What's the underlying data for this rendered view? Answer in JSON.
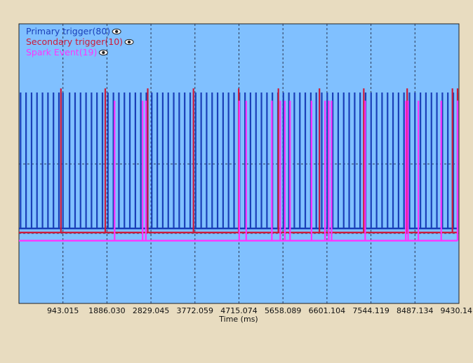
{
  "chart_data": {
    "type": "line",
    "xlabel": "Time (ms)",
    "ylabel": "",
    "xlim": [
      0,
      9430.14
    ],
    "x_ticks": [
      943.015,
      1886.03,
      2829.045,
      3772.059,
      4715.074,
      5658.089,
      6601.104,
      7544.119,
      8487.134,
      9430.14
    ],
    "x_tick_labels": [
      "943.015",
      "1886.030",
      "2829.045",
      "3772.059",
      "4715.074",
      "5658.089",
      "6601.104",
      "7544.119",
      "8487.134",
      "9430.14"
    ],
    "grid": true,
    "legend_position": "top-left",
    "background": "#80c0ff",
    "series": [
      {
        "name": "Primary trigger(80)",
        "color": "#1a3fb8",
        "signal": "pulse",
        "low": 0.0,
        "high": 1.0,
        "x": [
          35,
          152,
          270,
          387,
          505,
          622,
          740,
          857,
          943,
          1085,
          1203,
          1320,
          1438,
          1555,
          1672,
          1790,
          1907,
          2025,
          2142,
          2260,
          2377,
          2495,
          2612,
          2730,
          2847,
          2965,
          3082,
          3200,
          3317,
          3435,
          3552,
          3670,
          3787,
          3905,
          4022,
          4140,
          4257,
          4375,
          4492,
          4610,
          4727,
          4845,
          4962,
          5080,
          5197,
          5315,
          5432,
          5550,
          5667,
          5785,
          5902,
          6020,
          6137,
          6255,
          6372,
          6490,
          6607,
          6725,
          6842,
          6960,
          7077,
          7195,
          7312,
          7430,
          7547,
          7665,
          7782,
          7900,
          8017,
          8135,
          8252,
          8370,
          8487,
          8605,
          8722,
          8840,
          8957,
          9075,
          9192,
          9310
        ]
      },
      {
        "name": "Secondary trigger(10)",
        "color": "#cc1a3a",
        "signal": "pulse",
        "low": -0.03,
        "high": 1.03,
        "x": [
          900,
          1850,
          2760,
          3740,
          4710,
          5560,
          6440,
          7390,
          8320,
          9290
        ]
      },
      {
        "name": "Spark Event(19)",
        "color": "#ff33ff",
        "signal": "pulse",
        "low": -0.09,
        "high": 0.94,
        "x": [
          2050,
          2650,
          2720,
          4720,
          4870,
          5420,
          5600,
          5700,
          5810,
          6270,
          6560,
          6640,
          6700,
          7420,
          8290,
          8340,
          8560,
          9050,
          9400
        ]
      }
    ]
  }
}
